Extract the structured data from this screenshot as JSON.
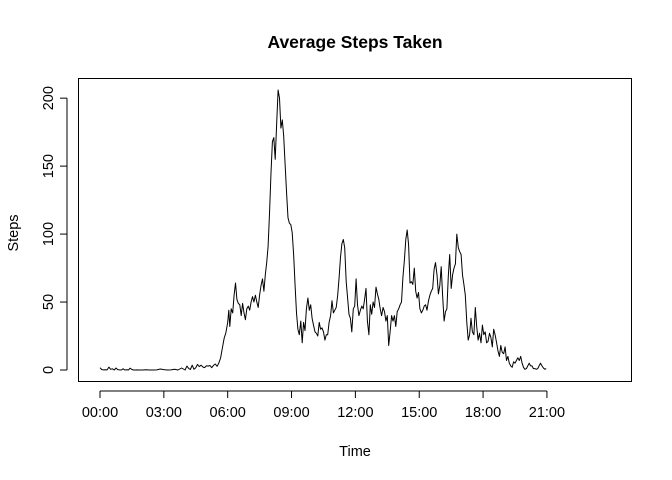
{
  "chart_data": {
    "type": "line",
    "title": "Average Steps Taken",
    "xlabel": "Time",
    "ylabel": "Steps",
    "xlim": [
      0,
      1435
    ],
    "ylim": [
      0,
      206
    ],
    "x_ticks": [
      {
        "value": 0,
        "label": "00:00"
      },
      {
        "value": 180,
        "label": "03:00"
      },
      {
        "value": 360,
        "label": "06:00"
      },
      {
        "value": 540,
        "label": "09:00"
      },
      {
        "value": 720,
        "label": "12:00"
      },
      {
        "value": 900,
        "label": "15:00"
      },
      {
        "value": 1080,
        "label": "18:00"
      },
      {
        "value": 1260,
        "label": "21:00"
      }
    ],
    "y_ticks": [
      0,
      50,
      100,
      150,
      200
    ],
    "grid": false,
    "legend": "none",
    "color": "#000000",
    "series": [
      {
        "x_unit": "minutes since 00:00",
        "points": [
          [
            0,
            1.7
          ],
          [
            5,
            0.3
          ],
          [
            10,
            0.1
          ],
          [
            15,
            0.2
          ],
          [
            20,
            0.1
          ],
          [
            25,
            2.1
          ],
          [
            30,
            0.5
          ],
          [
            35,
            0.9
          ],
          [
            40,
            0
          ],
          [
            45,
            1.5
          ],
          [
            50,
            0.3
          ],
          [
            55,
            0.1
          ],
          [
            60,
            0
          ],
          [
            65,
            0.9
          ],
          [
            70,
            0
          ],
          [
            75,
            0.2
          ],
          [
            80,
            0
          ],
          [
            85,
            1.3
          ],
          [
            90,
            0.4
          ],
          [
            95,
            0
          ],
          [
            100,
            0
          ],
          [
            105,
            0.1
          ],
          [
            110,
            0
          ],
          [
            120,
            0
          ],
          [
            130,
            0.2
          ],
          [
            140,
            0
          ],
          [
            150,
            0
          ],
          [
            160,
            0.1
          ],
          [
            170,
            0.7
          ],
          [
            180,
            0.3
          ],
          [
            190,
            0
          ],
          [
            200,
            0.1
          ],
          [
            210,
            0.5
          ],
          [
            220,
            0
          ],
          [
            230,
            1.5
          ],
          [
            240,
            0
          ],
          [
            245,
            2.9
          ],
          [
            250,
            1.2
          ],
          [
            255,
            0.4
          ],
          [
            260,
            3.5
          ],
          [
            265,
            0.5
          ],
          [
            270,
            1.7
          ],
          [
            275,
            4.1
          ],
          [
            280,
            2.5
          ],
          [
            285,
            3.5
          ],
          [
            290,
            2.2
          ],
          [
            295,
            1.8
          ],
          [
            300,
            3.1
          ],
          [
            305,
            2.9
          ],
          [
            310,
            3.3
          ],
          [
            315,
            1.7
          ],
          [
            320,
            3.4
          ],
          [
            325,
            4.4
          ],
          [
            330,
            2.7
          ],
          [
            335,
            5.1
          ],
          [
            340,
            8.8
          ],
          [
            345,
            16.3
          ],
          [
            350,
            23.2
          ],
          [
            355,
            27.5
          ],
          [
            360,
            35
          ],
          [
            363,
            44
          ],
          [
            366,
            32
          ],
          [
            370,
            45
          ],
          [
            374,
            42
          ],
          [
            378,
            55
          ],
          [
            382,
            64
          ],
          [
            386,
            52
          ],
          [
            390,
            49
          ],
          [
            394,
            48
          ],
          [
            398,
            40
          ],
          [
            402,
            49
          ],
          [
            406,
            42
          ],
          [
            410,
            37
          ],
          [
            414,
            45
          ],
          [
            418,
            47
          ],
          [
            422,
            44
          ],
          [
            426,
            50
          ],
          [
            430,
            54
          ],
          [
            434,
            50
          ],
          [
            438,
            55
          ],
          [
            442,
            50
          ],
          [
            446,
            46
          ],
          [
            450,
            55
          ],
          [
            454,
            62
          ],
          [
            458,
            67
          ],
          [
            462,
            58
          ],
          [
            466,
            70
          ],
          [
            470,
            79
          ],
          [
            474,
            91
          ],
          [
            478,
            115
          ],
          [
            482,
            145
          ],
          [
            486,
            168
          ],
          [
            490,
            171
          ],
          [
            494,
            155
          ],
          [
            498,
            180
          ],
          [
            502,
            206
          ],
          [
            506,
            200
          ],
          [
            510,
            178
          ],
          [
            514,
            184
          ],
          [
            518,
            172
          ],
          [
            522,
            150
          ],
          [
            526,
            130
          ],
          [
            530,
            112
          ],
          [
            534,
            108
          ],
          [
            538,
            107
          ],
          [
            542,
            101
          ],
          [
            546,
            84
          ],
          [
            550,
            62
          ],
          [
            554,
            42
          ],
          [
            558,
            30
          ],
          [
            562,
            26
          ],
          [
            566,
            36
          ],
          [
            570,
            20
          ],
          [
            574,
            35
          ],
          [
            578,
            29
          ],
          [
            582,
            45
          ],
          [
            586,
            53
          ],
          [
            590,
            44
          ],
          [
            594,
            48
          ],
          [
            598,
            38
          ],
          [
            602,
            33
          ],
          [
            606,
            28
          ],
          [
            610,
            27
          ],
          [
            614,
            25
          ],
          [
            618,
            35
          ],
          [
            622,
            30
          ],
          [
            626,
            31
          ],
          [
            630,
            28
          ],
          [
            634,
            22
          ],
          [
            638,
            26
          ],
          [
            642,
            26
          ],
          [
            646,
            35
          ],
          [
            650,
            40
          ],
          [
            654,
            51
          ],
          [
            658,
            42
          ],
          [
            662,
            44
          ],
          [
            666,
            46
          ],
          [
            670,
            55
          ],
          [
            674,
            68
          ],
          [
            678,
            83
          ],
          [
            682,
            93
          ],
          [
            686,
            96
          ],
          [
            690,
            90
          ],
          [
            694,
            65
          ],
          [
            698,
            53
          ],
          [
            702,
            41
          ],
          [
            706,
            38
          ],
          [
            710,
            28
          ],
          [
            714,
            45
          ],
          [
            718,
            47
          ],
          [
            722,
            67
          ],
          [
            726,
            48
          ],
          [
            730,
            40
          ],
          [
            734,
            44
          ],
          [
            738,
            47
          ],
          [
            742,
            45
          ],
          [
            746,
            52
          ],
          [
            750,
            60
          ],
          [
            754,
            36
          ],
          [
            758,
            26
          ],
          [
            762,
            48
          ],
          [
            766,
            41
          ],
          [
            770,
            50
          ],
          [
            774,
            46
          ],
          [
            778,
            61
          ],
          [
            782,
            56
          ],
          [
            786,
            52
          ],
          [
            790,
            45
          ],
          [
            794,
            40
          ],
          [
            798,
            46
          ],
          [
            802,
            43
          ],
          [
            806,
            36
          ],
          [
            810,
            40
          ],
          [
            814,
            18
          ],
          [
            818,
            28
          ],
          [
            822,
            40
          ],
          [
            826,
            36
          ],
          [
            830,
            40
          ],
          [
            834,
            32
          ],
          [
            838,
            43
          ],
          [
            842,
            45
          ],
          [
            846,
            48
          ],
          [
            850,
            50
          ],
          [
            854,
            68
          ],
          [
            858,
            80
          ],
          [
            862,
            96
          ],
          [
            866,
            103
          ],
          [
            870,
            92
          ],
          [
            874,
            64
          ],
          [
            878,
            65
          ],
          [
            882,
            63
          ],
          [
            886,
            75
          ],
          [
            890,
            58
          ],
          [
            894,
            53
          ],
          [
            898,
            57
          ],
          [
            902,
            45
          ],
          [
            906,
            42
          ],
          [
            910,
            44
          ],
          [
            914,
            47
          ],
          [
            918,
            48
          ],
          [
            922,
            44
          ],
          [
            926,
            51
          ],
          [
            930,
            55
          ],
          [
            934,
            58
          ],
          [
            938,
            60
          ],
          [
            942,
            74
          ],
          [
            946,
            79
          ],
          [
            950,
            70
          ],
          [
            954,
            56
          ],
          [
            958,
            62
          ],
          [
            962,
            76
          ],
          [
            966,
            55
          ],
          [
            970,
            36
          ],
          [
            974,
            43
          ],
          [
            978,
            45
          ],
          [
            982,
            69
          ],
          [
            986,
            85
          ],
          [
            990,
            60
          ],
          [
            994,
            70
          ],
          [
            998,
            75
          ],
          [
            1002,
            78
          ],
          [
            1006,
            100
          ],
          [
            1010,
            90
          ],
          [
            1014,
            87
          ],
          [
            1018,
            85
          ],
          [
            1022,
            70
          ],
          [
            1026,
            63
          ],
          [
            1030,
            55
          ],
          [
            1034,
            35
          ],
          [
            1038,
            22
          ],
          [
            1042,
            26
          ],
          [
            1046,
            38
          ],
          [
            1050,
            28
          ],
          [
            1054,
            26
          ],
          [
            1058,
            46
          ],
          [
            1062,
            32
          ],
          [
            1066,
            22
          ],
          [
            1070,
            27
          ],
          [
            1074,
            20
          ],
          [
            1078,
            33
          ],
          [
            1082,
            26
          ],
          [
            1086,
            28
          ],
          [
            1090,
            20
          ],
          [
            1094,
            21
          ],
          [
            1098,
            27
          ],
          [
            1102,
            24
          ],
          [
            1106,
            17
          ],
          [
            1110,
            30
          ],
          [
            1114,
            26
          ],
          [
            1118,
            20
          ],
          [
            1122,
            14
          ],
          [
            1126,
            10
          ],
          [
            1130,
            18
          ],
          [
            1134,
            13
          ],
          [
            1138,
            12
          ],
          [
            1142,
            17
          ],
          [
            1146,
            7
          ],
          [
            1150,
            10
          ],
          [
            1154,
            5
          ],
          [
            1158,
            3
          ],
          [
            1162,
            2
          ],
          [
            1166,
            6
          ],
          [
            1170,
            5
          ],
          [
            1174,
            7
          ],
          [
            1178,
            9
          ],
          [
            1182,
            7
          ],
          [
            1186,
            10
          ],
          [
            1190,
            5
          ],
          [
            1194,
            2
          ],
          [
            1198,
            0.5
          ],
          [
            1202,
            1
          ],
          [
            1206,
            3
          ],
          [
            1210,
            5
          ],
          [
            1214,
            3
          ],
          [
            1218,
            3
          ],
          [
            1222,
            1
          ],
          [
            1226,
            1
          ],
          [
            1230,
            0.5
          ],
          [
            1234,
            1
          ],
          [
            1238,
            3
          ],
          [
            1242,
            5
          ],
          [
            1246,
            3
          ],
          [
            1250,
            1.5
          ],
          [
            1254,
            0.5
          ],
          [
            1258,
            1
          ]
        ]
      }
    ]
  }
}
